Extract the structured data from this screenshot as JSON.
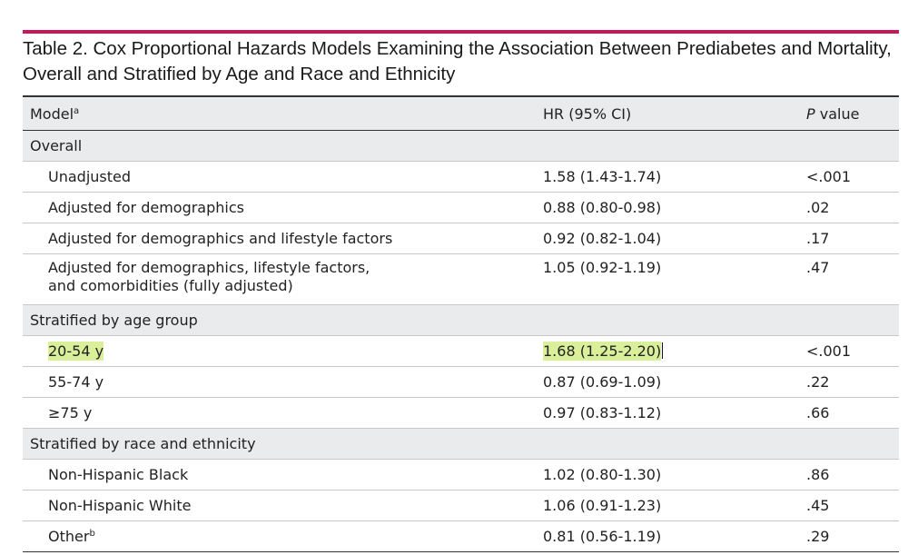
{
  "title": {
    "line1": "Table 2. Cox Proportional Hazards Models Examining the Association Between Prediabetes and Mortality,",
    "line2": "Overall and Stratified by Age and Race and Ethnicity"
  },
  "columns": {
    "model": "Model",
    "model_footnote": "a",
    "hr": "HR (95% CI)",
    "p_italic": "P",
    "p_rest": " value"
  },
  "sections": [
    {
      "label": "Overall",
      "rows": [
        {
          "model": "Unadjusted",
          "hr": "1.58 (1.43-1.74)",
          "p": "<.001"
        },
        {
          "model": "Adjusted for demographics",
          "hr": "0.88 (0.80-0.98)",
          "p": ".02"
        },
        {
          "model": "Adjusted for demographics and lifestyle factors",
          "hr": "0.92 (0.82-1.04)",
          "p": ".17"
        },
        {
          "model_line1": "Adjusted for demographics, lifestyle factors,",
          "model_line2": "and comorbidities (fully adjusted)",
          "hr": "1.05 (0.92-1.19)",
          "p": ".47"
        }
      ]
    },
    {
      "label": "Stratified by age group",
      "rows": [
        {
          "model": "20-54 y",
          "hr": "1.68 (1.25-2.20)",
          "p": "<.001",
          "highlighted": true
        },
        {
          "model": "55-74 y",
          "hr": "0.87 (0.69-1.09)",
          "p": ".22"
        },
        {
          "model": "≥75 y",
          "hr": "0.97 (0.83-1.12)",
          "p": ".66"
        }
      ]
    },
    {
      "label": "Stratified by race and ethnicity",
      "rows": [
        {
          "model": "Non-Hispanic Black",
          "hr": "1.02 (0.80-1.30)",
          "p": ".86"
        },
        {
          "model": "Non-Hispanic White",
          "hr": "1.06 (0.91-1.23)",
          "p": ".45"
        },
        {
          "model": "Other",
          "model_footnote": "b",
          "hr": "0.81 (0.56-1.19)",
          "p": ".29"
        }
      ]
    }
  ],
  "colors": {
    "accent_rule": "#c8185a",
    "header_fill": "#e9ebec",
    "highlight": "#d9ef9a"
  }
}
